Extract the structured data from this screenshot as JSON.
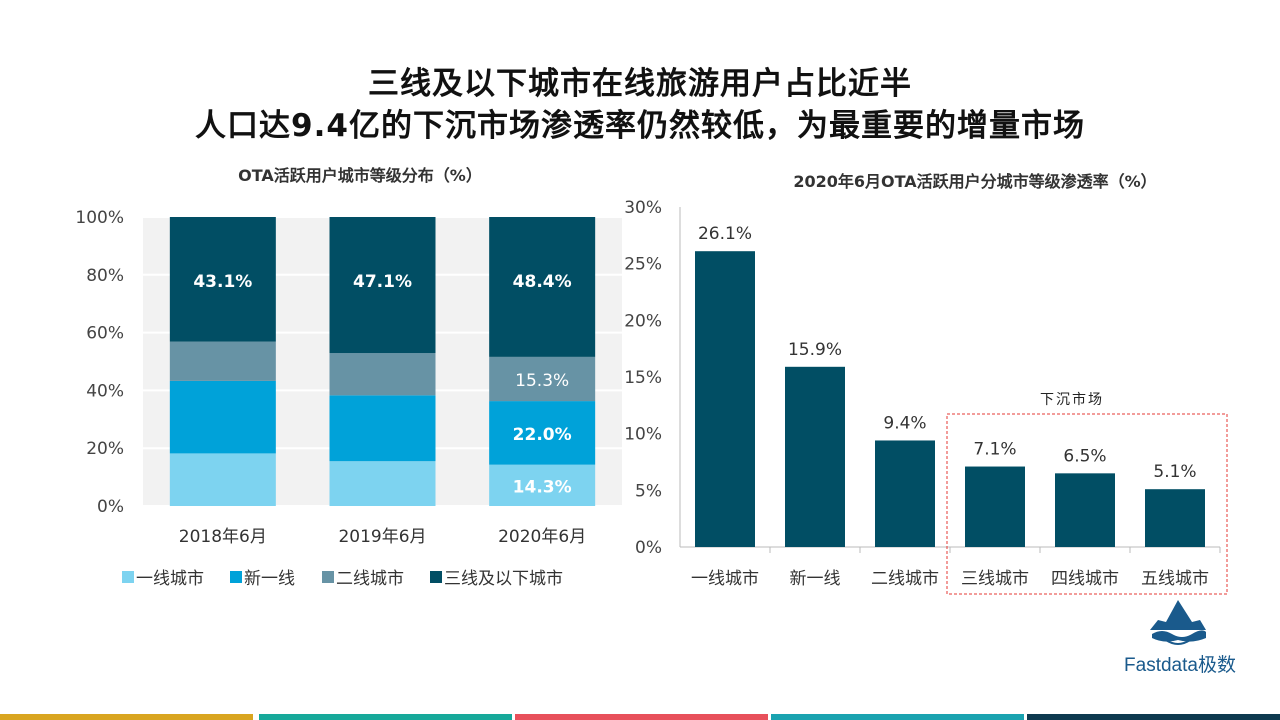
{
  "header": {
    "title_line1": "三线及以下城市在线旅游用户占比近半",
    "title_line2": "人口达9.4亿的下沉市场渗透率仍然较低，为最重要的增量市场"
  },
  "chart_data": [
    {
      "type": "bar",
      "stacked": true,
      "title": "OTA活跃用户城市等级分布（%）",
      "categories": [
        "2018年6月",
        "2019年6月",
        "2020年6月"
      ],
      "ylim": [
        0,
        100
      ],
      "yticks": [
        "0%",
        "20%",
        "40%",
        "60%",
        "80%",
        "100%"
      ],
      "series": [
        {
          "name": "一线城市",
          "color": "#7dd3f0",
          "values": [
            18.2,
            15.5,
            14.3
          ],
          "labels": [
            "",
            "",
            "14.3%"
          ]
        },
        {
          "name": "新一线",
          "color": "#00a2d9",
          "values": [
            25.1,
            22.8,
            22.0
          ],
          "labels": [
            "",
            "",
            "22.0%"
          ]
        },
        {
          "name": "二线城市",
          "color": "#6793a5",
          "values": [
            13.6,
            14.6,
            15.3
          ],
          "labels": [
            "",
            "",
            "15.3%"
          ]
        },
        {
          "name": "三线及以下城市",
          "color": "#014e64",
          "values": [
            43.1,
            47.1,
            48.4
          ],
          "labels": [
            "43.1%",
            "47.1%",
            "48.4%"
          ]
        }
      ],
      "legend_position": "bottom"
    },
    {
      "type": "bar",
      "title": "2020年6月OTA活跃用户分城市等级渗透率（%）",
      "categories": [
        "一线城市",
        "新一线",
        "二线城市",
        "三线城市",
        "四线城市",
        "五线城市"
      ],
      "values": [
        26.1,
        15.9,
        9.4,
        7.1,
        6.5,
        5.1
      ],
      "labels": [
        "26.1%",
        "15.9%",
        "9.4%",
        "7.1%",
        "6.5%",
        "5.1%"
      ],
      "color": "#014e64",
      "ylim": [
        0,
        30
      ],
      "yticks": [
        "0%",
        "5%",
        "10%",
        "15%",
        "20%",
        "25%",
        "30%"
      ],
      "annotation": "下沉市场",
      "annotation_categories": [
        "三线城市",
        "四线城市",
        "五线城市"
      ]
    }
  ],
  "branding": {
    "logo_text": "Fastdata极数"
  },
  "colors": {
    "bottom_bars": [
      "#d9a520",
      "#16a99a",
      "#e8505b",
      "#1aa3b0",
      "#0e3a4f"
    ]
  }
}
